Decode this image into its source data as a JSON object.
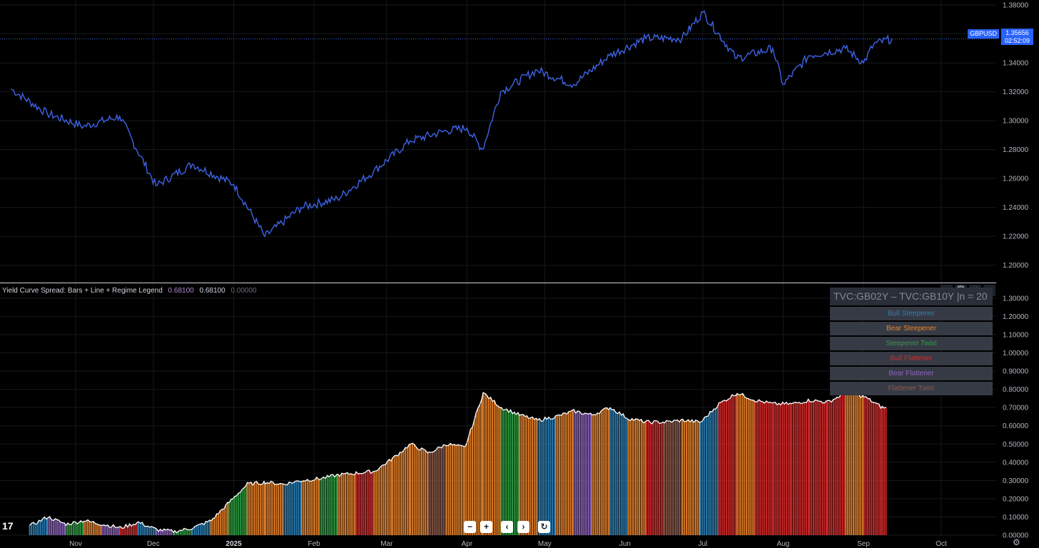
{
  "chart_data": [
    {
      "type": "line",
      "series": [
        {
          "name": "GBPUSD",
          "color": "#3f63e6"
        }
      ],
      "x": [
        "2024-10-07",
        "2024-10-21",
        "2024-11-04",
        "2024-11-18",
        "2024-12-02",
        "2024-12-16",
        "2025-01-01",
        "2025-01-13",
        "2025-01-27",
        "2025-02-10",
        "2025-02-24",
        "2025-03-10",
        "2025-03-24",
        "2025-04-01",
        "2025-04-07",
        "2025-04-14",
        "2025-04-28",
        "2025-05-12",
        "2025-05-26",
        "2025-06-09",
        "2025-06-23",
        "2025-07-01",
        "2025-07-14",
        "2025-07-28",
        "2025-08-01",
        "2025-08-11",
        "2025-08-25",
        "2025-09-01",
        "2025-09-05",
        "2025-09-12"
      ],
      "values": [
        1.322,
        1.305,
        1.296,
        1.303,
        1.255,
        1.27,
        1.256,
        1.22,
        1.24,
        1.246,
        1.265,
        1.286,
        1.293,
        1.295,
        1.28,
        1.32,
        1.335,
        1.325,
        1.345,
        1.357,
        1.357,
        1.375,
        1.343,
        1.35,
        1.325,
        1.345,
        1.35,
        1.34,
        1.353,
        1.3566
      ],
      "ylim": [
        1.19,
        1.381
      ],
      "yticks": [
        "1.20000",
        "1.22000",
        "1.24000",
        "1.26000",
        "1.28000",
        "1.30000",
        "1.32000",
        "1.34000",
        "1.36000",
        "1.38000"
      ],
      "last_label": {
        "symbol": "GBPUSD",
        "price": "1.35656",
        "countdown": "02:52:09"
      }
    },
    {
      "type": "bar",
      "title": "Yield Curve Spread: Bars + Line + Regime Legend",
      "header_values": [
        "0.68100",
        "0.68100",
        "0.00000"
      ],
      "x": [
        "2024-10-14",
        "2024-10-21",
        "2024-10-28",
        "2024-11-04",
        "2024-11-11",
        "2024-11-18",
        "2024-11-25",
        "2024-12-02",
        "2024-12-09",
        "2024-12-16",
        "2024-12-23",
        "2024-12-30",
        "2025-01-06",
        "2025-01-13",
        "2025-01-20",
        "2025-01-27",
        "2025-02-03",
        "2025-02-10",
        "2025-02-17",
        "2025-02-24",
        "2025-03-03",
        "2025-03-10",
        "2025-03-17",
        "2025-03-24",
        "2025-03-31",
        "2025-04-07",
        "2025-04-14",
        "2025-04-21",
        "2025-04-28",
        "2025-05-05",
        "2025-05-12",
        "2025-05-19",
        "2025-05-26",
        "2025-06-02",
        "2025-06-09",
        "2025-06-16",
        "2025-06-23",
        "2025-06-30",
        "2025-07-07",
        "2025-07-14",
        "2025-07-21",
        "2025-07-28",
        "2025-08-04",
        "2025-08-11",
        "2025-08-18",
        "2025-08-25",
        "2025-09-01",
        "2025-09-08"
      ],
      "values": [
        0.05,
        0.1,
        0.06,
        0.08,
        0.06,
        0.04,
        0.07,
        0.03,
        0.02,
        0.04,
        0.08,
        0.18,
        0.28,
        0.29,
        0.28,
        0.3,
        0.31,
        0.33,
        0.34,
        0.35,
        0.42,
        0.5,
        0.45,
        0.5,
        0.48,
        0.78,
        0.7,
        0.66,
        0.63,
        0.65,
        0.68,
        0.66,
        0.7,
        0.64,
        0.62,
        0.62,
        0.63,
        0.62,
        0.72,
        0.78,
        0.74,
        0.72,
        0.72,
        0.74,
        0.73,
        0.78,
        0.76,
        0.7
      ],
      "regimes": [
        0,
        4,
        2,
        1,
        4,
        3,
        0,
        4,
        2,
        0,
        1,
        2,
        1,
        1,
        0,
        1,
        2,
        1,
        3,
        1,
        1,
        1,
        5,
        1,
        1,
        1,
        2,
        1,
        0,
        1,
        4,
        1,
        0,
        1,
        3,
        5,
        1,
        0,
        3,
        1,
        3,
        3,
        3,
        3,
        3,
        1,
        3,
        3
      ],
      "ylim": [
        0,
        1.37
      ],
      "yticks": [
        "0.00000",
        "0.10000",
        "0.20000",
        "0.30000",
        "0.40000",
        "0.50000",
        "0.60000",
        "0.70000",
        "0.80000",
        "0.90000",
        "1.00000",
        "1.10000",
        "1.20000",
        "1.30000"
      ]
    }
  ],
  "xaxis": {
    "labels": [
      {
        "text": "Nov",
        "date": "2024-11-01"
      },
      {
        "text": "Dec",
        "date": "2024-12-01"
      },
      {
        "text": "2025",
        "date": "2025-01-01",
        "bold": true
      },
      {
        "text": "Feb",
        "date": "2025-02-01"
      },
      {
        "text": "Mar",
        "date": "2025-03-01"
      },
      {
        "text": "Apr",
        "date": "2025-04-01"
      },
      {
        "text": "May",
        "date": "2025-05-01"
      },
      {
        "text": "Jun",
        "date": "2025-06-01"
      },
      {
        "text": "Jul",
        "date": "2025-07-01"
      },
      {
        "text": "Aug",
        "date": "2025-08-01"
      },
      {
        "text": "Sep",
        "date": "2025-09-01"
      },
      {
        "text": "Oct",
        "date": "2025-10-01"
      }
    ]
  },
  "legend": {
    "title": "TVC:GB02Y – TVC:GB10Y |n = 20",
    "items": [
      {
        "label": "Bull Steepener",
        "color": "#2d7fb5"
      },
      {
        "label": "Bear Steepener",
        "color": "#e8822a"
      },
      {
        "label": "Steepener Twist",
        "color": "#2f9e44"
      },
      {
        "label": "Bull Flattener",
        "color": "#d62b2b"
      },
      {
        "label": "Bear Flattener",
        "color": "#8e63be"
      },
      {
        "label": "Flattener Twist",
        "color": "#8a5a4a"
      }
    ]
  },
  "colors": {
    "line": "#3f63e6",
    "spread_line": "#ffffff",
    "background": "#000000",
    "grid": "#16181e"
  },
  "toolbar": {
    "up_icon": "arrow-up-icon",
    "delete_icon": "trash-icon",
    "collapse_icon": "collapse-icon",
    "maximize_icon": "maximize-icon"
  },
  "nav": {
    "zoom_out": "−",
    "zoom_in": "+",
    "scroll_left": "‹",
    "scroll_right": "›",
    "reset": "↻"
  },
  "branding": {
    "logo": "17"
  }
}
